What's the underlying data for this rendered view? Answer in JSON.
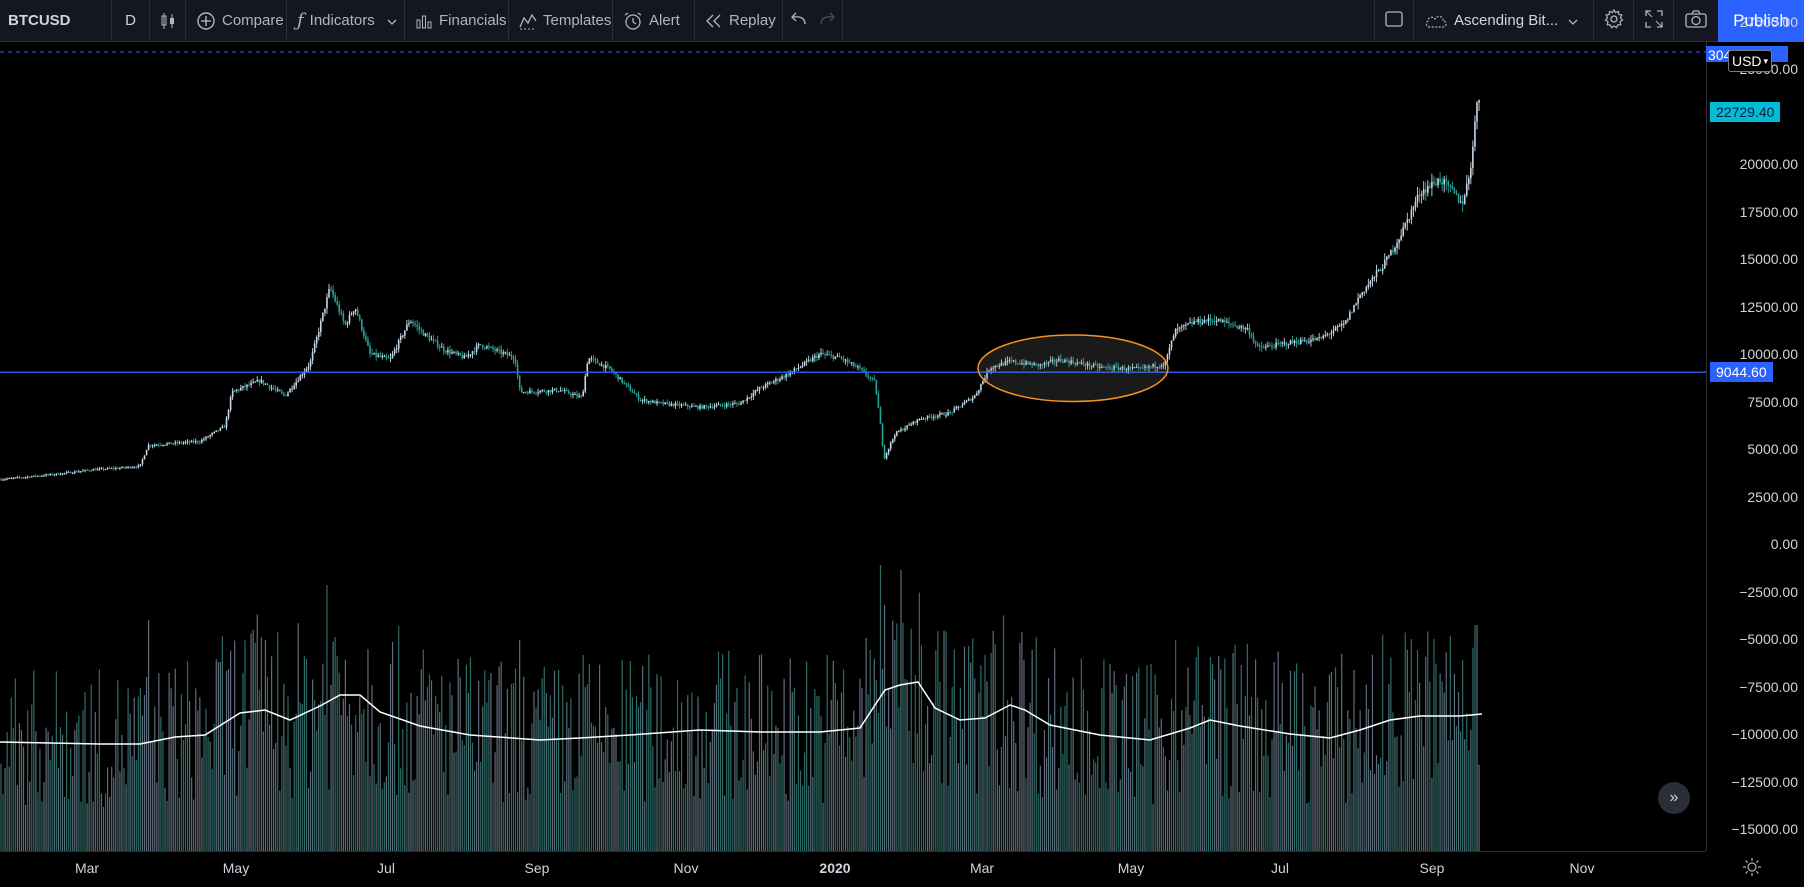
{
  "toolbar": {
    "symbol": "BTCUSD",
    "interval": "D",
    "compare": "Compare",
    "indicators": "Indicators",
    "financials": "Financials",
    "templates": "Templates",
    "alert": "Alert",
    "replay": "Replay",
    "layout_name": "Ascending Bit...",
    "publish": "Publish"
  },
  "price_scale": {
    "currency": "USD",
    "top_value": "30456.63",
    "last_price": "22729.40",
    "level_price": "9044.60",
    "ticks": [
      "27500.00",
      "25000.00",
      "20000.00",
      "17500.00",
      "15000.00",
      "12500.00",
      "10000.00",
      "7500.00",
      "5000.00",
      "2500.00",
      "0.00",
      "−2500.00",
      "−5000.00",
      "−7500.00",
      "−10000.00",
      "−12500.00",
      "−15000.00"
    ]
  },
  "time_scale": {
    "labels": [
      "Mar",
      "May",
      "Jul",
      "Sep",
      "Nov",
      "2020",
      "Mar",
      "May",
      "Jul",
      "Sep",
      "Nov"
    ]
  },
  "colors": {
    "background": "#000000",
    "toolbar_bg": "#131722",
    "candle": "#c8d7e6",
    "candle_down": "#26a69a",
    "horizontal_line": "#2962ff",
    "ellipse": "#f7931a",
    "volume_ma": "#ffffff",
    "last_price_badge": "#00bcd4",
    "publish": "#2962ff"
  },
  "chart_data": {
    "type": "candlestick",
    "symbol": "BTCUSD",
    "interval": "D",
    "price_range": [
      -15000,
      30456.63
    ],
    "last_price": 22729.4,
    "horizontal_line_price": 9044.6,
    "highlight_ellipse": {
      "x_start": "May",
      "x_end": "Jul",
      "price_low": 7500,
      "price_high": 11000
    },
    "x_labels": [
      "Mar",
      "May",
      "Jul",
      "Sep",
      "Nov",
      "2020",
      "Mar",
      "May",
      "Jul",
      "Sep",
      "Nov"
    ],
    "price_path": [
      [
        0,
        3400
      ],
      [
        60,
        3700
      ],
      [
        90,
        3900
      ],
      [
        120,
        4000
      ],
      [
        140,
        4100
      ],
      [
        148,
        5200
      ],
      [
        200,
        5400
      ],
      [
        225,
        6200
      ],
      [
        232,
        8000
      ],
      [
        260,
        8600
      ],
      [
        285,
        7800
      ],
      [
        310,
        9500
      ],
      [
        325,
        12500
      ],
      [
        330,
        13500
      ],
      [
        345,
        11500
      ],
      [
        355,
        12500
      ],
      [
        370,
        10000
      ],
      [
        390,
        9700
      ],
      [
        410,
        11800
      ],
      [
        425,
        11000
      ],
      [
        445,
        10200
      ],
      [
        465,
        9800
      ],
      [
        480,
        10500
      ],
      [
        500,
        10100
      ],
      [
        515,
        9800
      ],
      [
        520,
        8000
      ],
      [
        560,
        8100
      ],
      [
        582,
        7700
      ],
      [
        588,
        9800
      ],
      [
        610,
        9200
      ],
      [
        640,
        7600
      ],
      [
        660,
        7400
      ],
      [
        700,
        7200
      ],
      [
        740,
        7400
      ],
      [
        760,
        8200
      ],
      [
        790,
        9000
      ],
      [
        820,
        10000
      ],
      [
        840,
        9800
      ],
      [
        860,
        9200
      ],
      [
        875,
        8500
      ],
      [
        880,
        6500
      ],
      [
        884,
        4500
      ],
      [
        895,
        5800
      ],
      [
        920,
        6600
      ],
      [
        950,
        6900
      ],
      [
        975,
        7800
      ],
      [
        990,
        9300
      ],
      [
        1010,
        9600
      ],
      [
        1040,
        9400
      ],
      [
        1060,
        9700
      ],
      [
        1100,
        9300
      ],
      [
        1140,
        9200
      ],
      [
        1165,
        9500
      ],
      [
        1175,
        11200
      ],
      [
        1195,
        11700
      ],
      [
        1215,
        11800
      ],
      [
        1235,
        11500
      ],
      [
        1248,
        11300
      ],
      [
        1258,
        10300
      ],
      [
        1290,
        10600
      ],
      [
        1320,
        10800
      ],
      [
        1345,
        11600
      ],
      [
        1360,
        13100
      ],
      [
        1385,
        14800
      ],
      [
        1400,
        16200
      ],
      [
        1420,
        18500
      ],
      [
        1440,
        19200
      ],
      [
        1455,
        18400
      ],
      [
        1462,
        17900
      ],
      [
        1470,
        19500
      ],
      [
        1476,
        22800
      ],
      [
        1481,
        23900
      ]
    ],
    "volume_ma_path": [
      [
        0,
        742
      ],
      [
        100,
        744
      ],
      [
        140,
        744
      ],
      [
        175,
        737
      ],
      [
        205,
        735
      ],
      [
        240,
        713
      ],
      [
        265,
        710
      ],
      [
        290,
        720
      ],
      [
        320,
        706
      ],
      [
        340,
        695
      ],
      [
        360,
        695
      ],
      [
        380,
        712
      ],
      [
        420,
        726
      ],
      [
        470,
        735
      ],
      [
        540,
        740
      ],
      [
        580,
        738
      ],
      [
        630,
        735
      ],
      [
        700,
        730
      ],
      [
        760,
        732
      ],
      [
        820,
        732
      ],
      [
        860,
        728
      ],
      [
        875,
        705
      ],
      [
        885,
        690
      ],
      [
        900,
        685
      ],
      [
        918,
        682
      ],
      [
        935,
        708
      ],
      [
        960,
        720
      ],
      [
        985,
        718
      ],
      [
        1010,
        705
      ],
      [
        1025,
        710
      ],
      [
        1050,
        725
      ],
      [
        1100,
        735
      ],
      [
        1150,
        740
      ],
      [
        1190,
        728
      ],
      [
        1210,
        720
      ],
      [
        1240,
        726
      ],
      [
        1290,
        734
      ],
      [
        1330,
        738
      ],
      [
        1360,
        730
      ],
      [
        1390,
        720
      ],
      [
        1420,
        716
      ],
      [
        1460,
        716
      ],
      [
        1482,
        714
      ]
    ]
  }
}
